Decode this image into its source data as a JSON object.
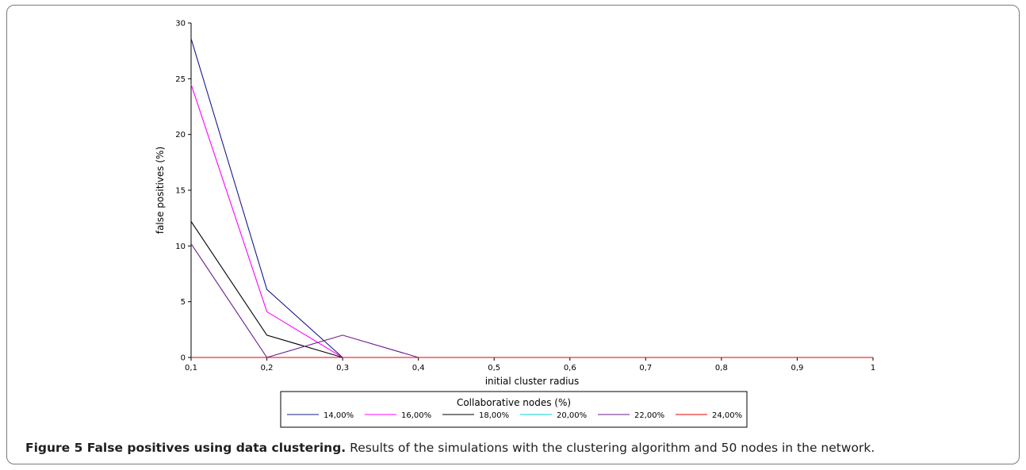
{
  "figure": {
    "label": "Figure 5 False positives using data clustering.",
    "caption": " Results of the simulations with the clustering algorithm and 50 nodes in the network."
  },
  "chart_data": {
    "type": "line",
    "title": "",
    "xlabel": "initial cluster radius",
    "ylabel": "false positives (%)",
    "x": [
      0.1,
      0.2,
      0.3,
      0.4,
      0.5,
      0.6,
      0.7,
      0.8,
      0.9,
      1
    ],
    "x_tick_labels": [
      "0,1",
      "0,2",
      "0,3",
      "0,4",
      "0,5",
      "0,6",
      "0,7",
      "0,8",
      "0,9",
      "1"
    ],
    "y_ticks": [
      0,
      5,
      10,
      15,
      20,
      25,
      30
    ],
    "xlim": [
      0.1,
      1
    ],
    "ylim": [
      0,
      30
    ],
    "grid": false,
    "legend": {
      "title": "Collaborative nodes (%)",
      "position": "bottom-center"
    },
    "series": [
      {
        "name": "14,00%",
        "color": "#1a1a8c",
        "values": [
          28.6,
          6.1,
          0,
          0,
          0,
          0,
          0,
          0,
          0,
          0
        ]
      },
      {
        "name": "16,00%",
        "color": "#ff00ff",
        "values": [
          24.5,
          4.1,
          0,
          0,
          0,
          0,
          0,
          0,
          0,
          0
        ]
      },
      {
        "name": "18,00%",
        "color": "#000000",
        "values": [
          12.2,
          2.0,
          0,
          0,
          0,
          0,
          0,
          0,
          0,
          0
        ]
      },
      {
        "name": "20,00%",
        "color": "#00d0d0",
        "values": [
          0,
          0,
          0,
          0,
          0,
          0,
          0,
          0,
          0,
          0
        ]
      },
      {
        "name": "22,00%",
        "color": "#6a1a8a",
        "values": [
          10.2,
          0,
          2.0,
          0,
          0,
          0,
          0,
          0,
          0,
          0
        ]
      },
      {
        "name": "24,00%",
        "color": "#e00000",
        "values": [
          0,
          0,
          0,
          0,
          0,
          0,
          0,
          0,
          0,
          0
        ]
      }
    ]
  }
}
